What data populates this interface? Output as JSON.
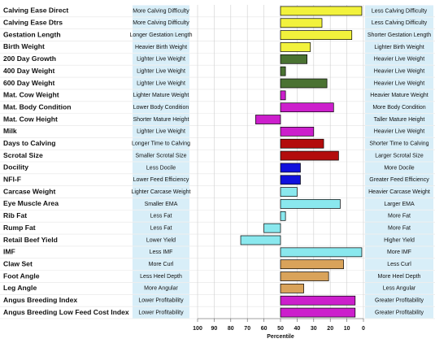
{
  "chart_data": {
    "type": "bar",
    "orientation": "horizontal",
    "categories": [
      "Calving Ease Direct",
      "Calving Ease Dtrs",
      "Gestation Length",
      "Birth Weight",
      "200 Day Growth",
      "400 Day Weight",
      "600 Day Weight",
      "Mat. Cow Weight",
      "Mat. Body Condition",
      "Mat. Cow Height",
      "Milk",
      "Days to Calving",
      "Scrotal Size",
      "Docility",
      "NFI-F",
      "Carcase Weight",
      "Eye Muscle Area",
      "Rib Fat",
      "Rump Fat",
      "Retail Beef Yield",
      "IMF",
      "Claw Set",
      "Foot Angle",
      "Leg Angle",
      "Angus Breeding Index",
      "Angus Breeding Low Feed Cost Index"
    ],
    "left_labels": [
      "More Calving Difficulty",
      "More Calving Difficulty",
      "Longer Gestation Length",
      "Heavier Birth Weight",
      "Lighter Live Weight",
      "Lighter Live Weight",
      "Lighter Live Weight",
      "Lighter Mature Weight",
      "Lower Body Condition",
      "Shorter Mature Height",
      "Lighter Live Weight",
      "Longer Time to Calving",
      "Smaller Scrotal Size",
      "Less Docile",
      "Lower Feed Efficiency",
      "Lighter Carcase Weight",
      "Smaller EMA",
      "Less Fat",
      "Less Fat",
      "Lower Yield",
      "Less IMF",
      "More Curl",
      "Less Heel Depth",
      "More Angular",
      "Lower Profitability",
      "Lower Profitability"
    ],
    "right_labels": [
      "Less Calving Difficulty",
      "Less Calving Difficulty",
      "Shorter Gestation Length",
      "Lighter Birth Weight",
      "Heavier Live Weight",
      "Heavier Live Weight",
      "Heavier Live Weight",
      "Heavier Mature Weight",
      "More Body Condition",
      "Taller Mature Height",
      "Heavier Live Weight",
      "Shorter Time to Calving",
      "Larger Scrotal Size",
      "More Docile",
      "Greater Feed Efficiency",
      "Heavier Carcase Weight",
      "Larger EMA",
      "More Fat",
      "More Fat",
      "Higher Yield",
      "More IMF",
      "Less Curl",
      "More Heel Depth",
      "Less Angular",
      "Greater Profitability",
      "Greater Profitability"
    ],
    "values": [
      1,
      25,
      7,
      32,
      34,
      47,
      22,
      47,
      18,
      65,
      30,
      24,
      15,
      38,
      38,
      40,
      14,
      47,
      60,
      74,
      1,
      12,
      21,
      36,
      5,
      5
    ],
    "colors": [
      "#f2f23c",
      "#f2f23c",
      "#f2f23c",
      "#f2f23c",
      "#4a7232",
      "#4a7232",
      "#4a7232",
      "#cc1fcc",
      "#cc1fcc",
      "#cc1fcc",
      "#cc1fcc",
      "#b30c0c",
      "#b30c0c",
      "#1111dd",
      "#1111dd",
      "#8ae8ee",
      "#8ae8ee",
      "#8ae8ee",
      "#8ae8ee",
      "#8ae8ee",
      "#8ae8ee",
      "#d9a35a",
      "#d9a35a",
      "#d9a35a",
      "#cc1fcc",
      "#cc1fcc"
    ],
    "xlim": [
      100,
      0
    ],
    "xticks": [
      100,
      90,
      80,
      70,
      60,
      50,
      40,
      30,
      20,
      10,
      0
    ],
    "xlabel": "Percentile",
    "grid": true
  }
}
